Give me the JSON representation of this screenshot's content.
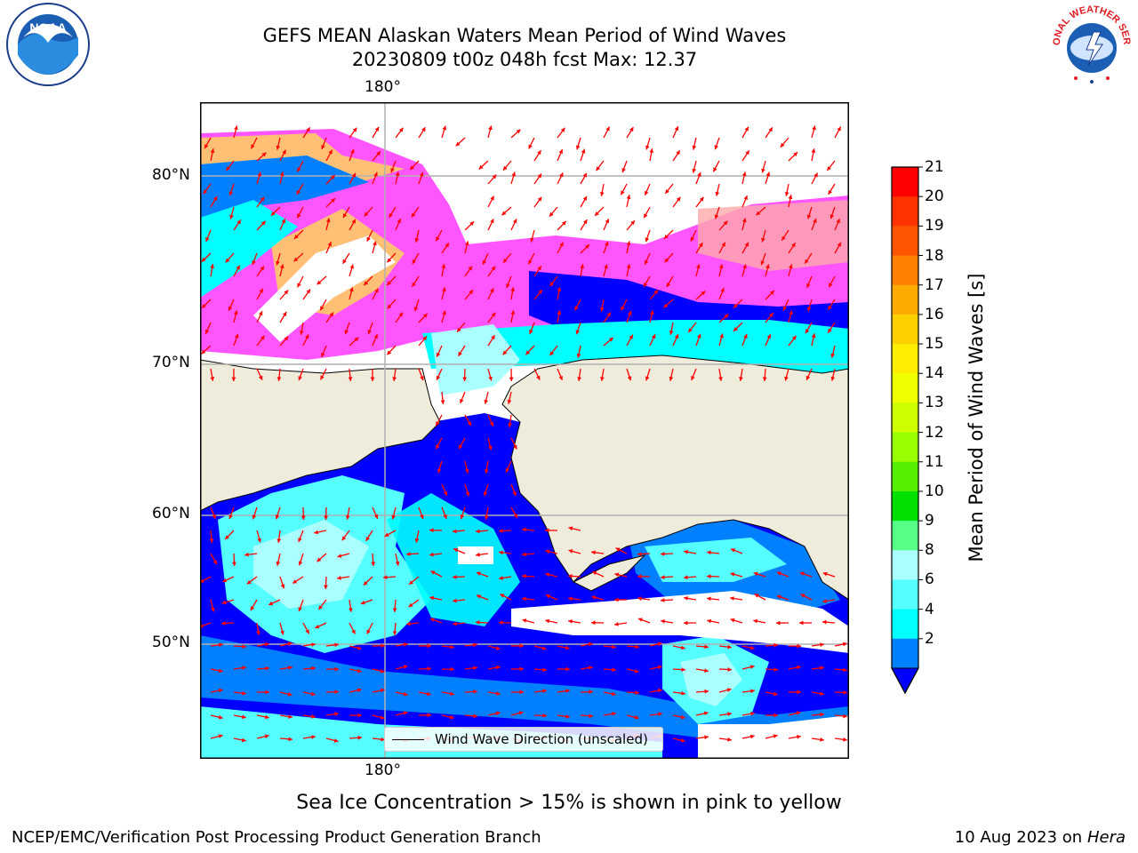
{
  "title": {
    "line1": "GEFS MEAN Alaskan Waters Mean Period of Wind Waves",
    "line2": "20230809 t00z 048h fcst   Max: 12.37"
  },
  "map": {
    "lon_labels": {
      "top": "180°",
      "bottom": "180°"
    },
    "lat_labels": [
      "80°N",
      "70°N",
      "60°N",
      "50°N"
    ],
    "land_color": "#efecdc",
    "ice_colors": [
      "#ff55ff",
      "#ff88ee",
      "#ffaaaa",
      "#ffcc66",
      "#ffdd55"
    ]
  },
  "legend": {
    "label": "Wind Wave Direction (unscaled)"
  },
  "colorbar": {
    "label": "Mean Period of Wind Waves [s]",
    "ticks": [
      "21",
      "20",
      "19",
      "18",
      "17",
      "16",
      "15",
      "14",
      "13",
      "12",
      "11",
      "10",
      "9",
      "8",
      "6",
      "4",
      "2"
    ],
    "colors": [
      "#ff0000",
      "#ff3300",
      "#ff5500",
      "#ff8000",
      "#ffaa00",
      "#ffd000",
      "#ffee00",
      "#eeff00",
      "#ccff00",
      "#99ff00",
      "#55ee00",
      "#00e000",
      "#55ff88",
      "#aaffff",
      "#55ffff",
      "#00ffff",
      "#0080ff"
    ],
    "under_color": "#0000ff"
  },
  "note": "Sea Ice Concentration > 15% is shown in pink to yellow",
  "footer": {
    "left": "NCEP/EMC/Verification Post Processing Product Generation Branch",
    "date": "10 Aug 2023 on",
    "host": "Hera"
  },
  "logos": {
    "noaa": "NOAA",
    "nws": "NATIONAL WEATHER SERVICE"
  },
  "icons": {
    "arrow": "wind-arrow-icon"
  }
}
